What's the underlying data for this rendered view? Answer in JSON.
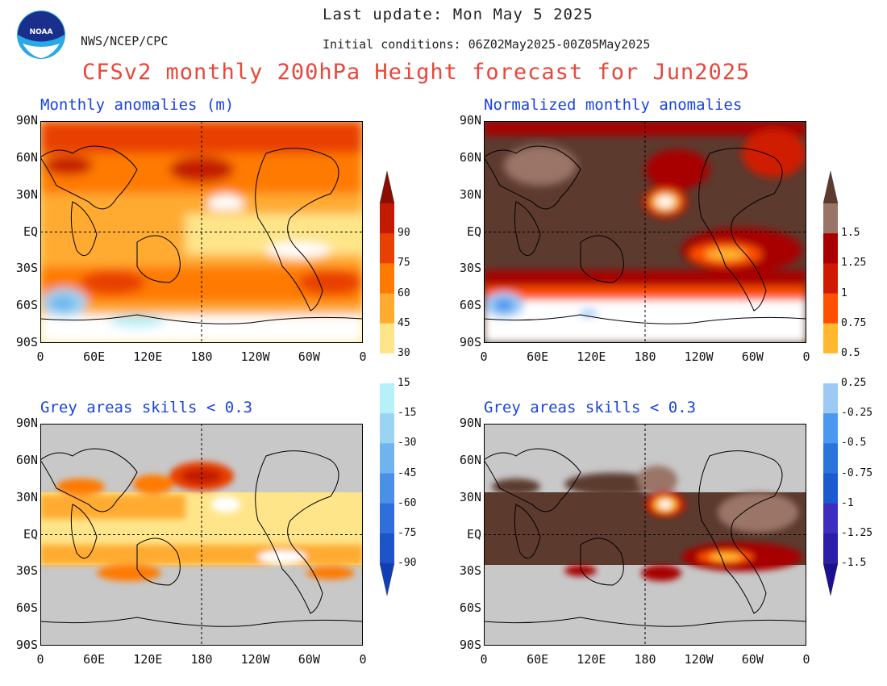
{
  "header": {
    "org": "NWS/NCEP/CPC",
    "logo_text": "NOAA",
    "last_update": "Last update: Mon May 5 2025",
    "initial_conditions": "Initial conditions: 06Z02May2025-00Z05May2025",
    "title": "CFSv2 monthly 200hPa Height forecast for Jun2025"
  },
  "panels": {
    "top_left": {
      "title": "Monthly anomalies (m)"
    },
    "top_right": {
      "title": "Normalized monthly anomalies"
    },
    "bottom_left": {
      "title": "Grey areas skills < 0.3"
    },
    "bottom_right": {
      "title": "Grey areas skills < 0.3"
    }
  },
  "axes": {
    "lat_labels": [
      "90N",
      "60N",
      "30N",
      "EQ",
      "30S",
      "60S",
      "90S"
    ],
    "lon_labels": [
      "0",
      "60E",
      "120E",
      "180",
      "120W",
      "60W",
      "0"
    ]
  },
  "colorbars": {
    "left": {
      "labels": [
        "90",
        "75",
        "60",
        "45",
        "30",
        "15",
        "-15",
        "-30",
        "-45",
        "-60",
        "-75",
        "-90"
      ],
      "colors": [
        "#8b0d00",
        "#c41a00",
        "#e84000",
        "#ff7a00",
        "#ffab30",
        "#ffe58a",
        "#ffffff",
        "#b8f0fa",
        "#9bd4f2",
        "#6fb4ee",
        "#4a90e6",
        "#2f6fdc",
        "#1c54cc",
        "#0e3fb6"
      ]
    },
    "right": {
      "labels": [
        "1.5",
        "1.25",
        "1",
        "0.75",
        "0.5",
        "0.25",
        "-0.25",
        "-0.5",
        "-0.75",
        "-1",
        "-1.25",
        "-1.5"
      ],
      "colors": [
        "#5c3a2e",
        "#9a7468",
        "#a80000",
        "#d01a00",
        "#ff5000",
        "#ffb830",
        "#ffffff",
        "#9ccaf5",
        "#4c98ee",
        "#2a74dc",
        "#1c5ad0",
        "#3e2ec0",
        "#2c1ea8",
        "#1a1090"
      ]
    }
  },
  "legend_colors": {
    "skill_grey": "#c8c8c8",
    "title_red": "#e8473a",
    "title_blue": "#1a44e0"
  }
}
